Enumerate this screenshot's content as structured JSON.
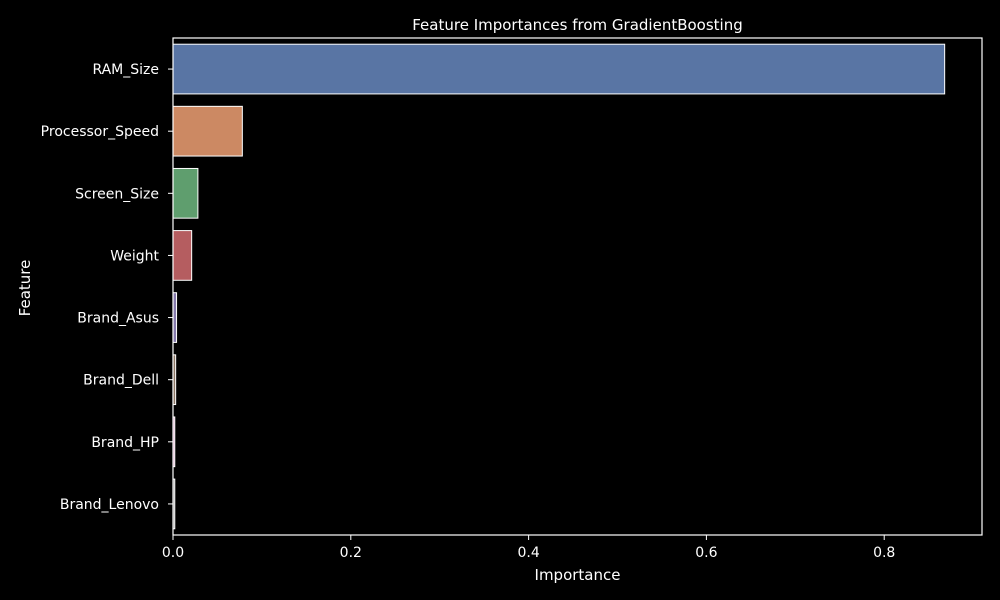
{
  "chart_data": {
    "type": "bar",
    "orientation": "horizontal",
    "title": "Feature Importances from GradientBoosting",
    "xlabel": "Importance",
    "ylabel": "Feature",
    "xlim": [
      0,
      0.91
    ],
    "xticks": [
      0.0,
      0.2,
      0.4,
      0.6,
      0.8
    ],
    "xtick_labels": [
      "0.0",
      "0.2",
      "0.4",
      "0.6",
      "0.8"
    ],
    "grid": false,
    "categories": [
      "RAM_Size",
      "Processor_Speed",
      "Screen_Size",
      "Weight",
      "Brand_Asus",
      "Brand_Dell",
      "Brand_HP",
      "Brand_Lenovo"
    ],
    "values": [
      0.868,
      0.078,
      0.028,
      0.021,
      0.004,
      0.003,
      0.002,
      0.002
    ],
    "colors": [
      "#5975a4",
      "#cc8963",
      "#5f9e6e",
      "#b55d60",
      "#857aab",
      "#8d7866",
      "#d095bf",
      "#8c8c8c"
    ],
    "background": "#000000",
    "text_color": "#ffffff",
    "edge_color": "#ffffff"
  }
}
